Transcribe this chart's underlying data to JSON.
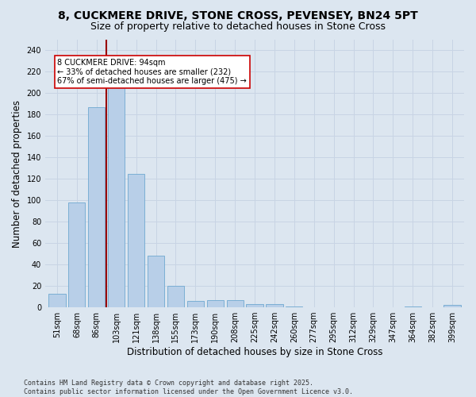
{
  "title_line1": "8, CUCKMERE DRIVE, STONE CROSS, PEVENSEY, BN24 5PT",
  "title_line2": "Size of property relative to detached houses in Stone Cross",
  "xlabel": "Distribution of detached houses by size in Stone Cross",
  "ylabel": "Number of detached properties",
  "categories": [
    "51sqm",
    "68sqm",
    "86sqm",
    "103sqm",
    "121sqm",
    "138sqm",
    "155sqm",
    "173sqm",
    "190sqm",
    "208sqm",
    "225sqm",
    "242sqm",
    "260sqm",
    "277sqm",
    "295sqm",
    "312sqm",
    "329sqm",
    "347sqm",
    "364sqm",
    "382sqm",
    "399sqm"
  ],
  "values": [
    13,
    98,
    187,
    215,
    125,
    48,
    20,
    6,
    7,
    7,
    3,
    3,
    1,
    0,
    0,
    0,
    0,
    0,
    1,
    0,
    2
  ],
  "bar_color": "#b8cfe8",
  "bar_edge_color": "#6fa8d0",
  "grid_color": "#c8d4e4",
  "background_color": "#dce6f0",
  "vline_color": "#990000",
  "vline_x_index": 2,
  "annotation_text": "8 CUCKMERE DRIVE: 94sqm\n← 33% of detached houses are smaller (232)\n67% of semi-detached houses are larger (475) →",
  "ylim": [
    0,
    250
  ],
  "yticks": [
    0,
    20,
    40,
    60,
    80,
    100,
    120,
    140,
    160,
    180,
    200,
    220,
    240
  ],
  "footer": "Contains HM Land Registry data © Crown copyright and database right 2025.\nContains public sector information licensed under the Open Government Licence v3.0.",
  "title_fontsize": 10,
  "subtitle_fontsize": 9,
  "tick_fontsize": 7,
  "label_fontsize": 8.5,
  "footer_fontsize": 6,
  "bar_width": 0.85
}
